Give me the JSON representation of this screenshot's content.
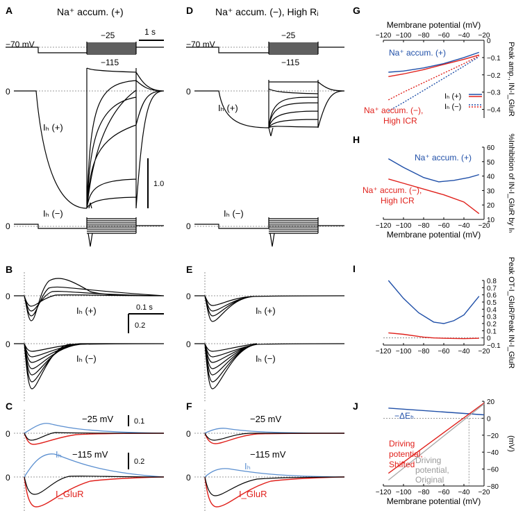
{
  "panels": {
    "A": {
      "letter": "A",
      "title": "Na⁺ accum. (+)"
    },
    "D": {
      "letter": "D",
      "title": "Na⁺ accum. (−), High Rᵢ"
    },
    "B": {
      "letter": "B"
    },
    "E": {
      "letter": "E"
    },
    "C": {
      "letter": "C"
    },
    "F": {
      "letter": "F"
    },
    "G": {
      "letter": "G"
    },
    "H": {
      "letter": "H"
    },
    "I": {
      "letter": "I"
    },
    "J": {
      "letter": "J"
    }
  },
  "protocol": {
    "hold": "−70 mV",
    "step_hi": "−25",
    "step_lo": "−115",
    "time_scale": "1 s"
  },
  "labels": {
    "ih_plus": "Iₕ (+)",
    "ih_minus": "Iₕ (−)",
    "zero": "0",
    "scale_A": "1.0",
    "scale_B_time": "0.1 s",
    "scale_B_amp": "0.2",
    "c_top_v": "−25 mV",
    "c_bot_v": "−115 mV",
    "c_scale_top": "0.1",
    "c_scale_bot": "0.2",
    "ih": "Iₕ",
    "iglur": "I_GluR"
  },
  "chart_data": [
    {
      "panel": "G",
      "type": "line",
      "title": "Membrane potential (mV)",
      "ylabel": "Peak amp., IN-I_GluR",
      "xlim": [
        -120,
        -20
      ],
      "ylim": [
        -0.45,
        0
      ],
      "xticks": [
        -120,
        -100,
        -80,
        -60,
        -40,
        -20
      ],
      "yticks": [
        0,
        -0.1,
        -0.2,
        -0.3,
        -0.4
      ],
      "yticklabels": [
        "0",
        "−0.1",
        "−0.2",
        "−0.3",
        "−0.4"
      ],
      "legend": [
        "Iₕ (+)",
        "Iₕ (−)"
      ],
      "annotations": [
        "Na⁺ accum. (+)",
        "Na⁺ accum. (−),",
        "High ICR"
      ],
      "series": [
        {
          "name": "Na accum (+) Ih(+)",
          "color": "#1f4fa8",
          "style": "solid",
          "x": [
            -115,
            -100,
            -80,
            -60,
            -40,
            -25
          ],
          "y": [
            -0.185,
            -0.178,
            -0.16,
            -0.135,
            -0.1,
            -0.07
          ]
        },
        {
          "name": "Na accum (+) Ih(-)",
          "color": "#1f4fa8",
          "style": "dotted",
          "x": [
            -115,
            -100,
            -80,
            -60,
            -40,
            -25
          ],
          "y": [
            -0.41,
            -0.36,
            -0.29,
            -0.22,
            -0.15,
            -0.095
          ]
        },
        {
          "name": "Na accum (-) Ih(+)",
          "color": "#e0201b",
          "style": "solid",
          "x": [
            -115,
            -100,
            -80,
            -60,
            -40,
            -25
          ],
          "y": [
            -0.21,
            -0.195,
            -0.17,
            -0.14,
            -0.11,
            -0.085
          ]
        },
        {
          "name": "Na accum (-) Ih(-)",
          "color": "#e0201b",
          "style": "dotted",
          "x": [
            -115,
            -100,
            -80,
            -60,
            -40,
            -25
          ],
          "y": [
            -0.345,
            -0.3,
            -0.245,
            -0.19,
            -0.135,
            -0.09
          ]
        }
      ]
    },
    {
      "panel": "H",
      "type": "line",
      "xlabel": "Membrane potential (mV)",
      "ylabel": "%Inhibition of IN-I_GluR by Iₕ",
      "xlim": [
        -120,
        -20
      ],
      "ylim": [
        10,
        60
      ],
      "xticks": [
        -120,
        -100,
        -80,
        -60,
        -40,
        -20
      ],
      "yticks": [
        10,
        20,
        30,
        40,
        50,
        60
      ],
      "annotations": [
        "Na⁺ accum. (+)",
        "Na⁺ accum. (−),",
        "High ICR"
      ],
      "series": [
        {
          "name": "Na accum (+)",
          "color": "#1f4fa8",
          "x": [
            -115,
            -100,
            -80,
            -65,
            -50,
            -35,
            -25
          ],
          "y": [
            52,
            46,
            39,
            36,
            37,
            39,
            41
          ]
        },
        {
          "name": "Na accum (-) High ICR",
          "color": "#e0201b",
          "x": [
            -115,
            -100,
            -80,
            -60,
            -40,
            -25
          ],
          "y": [
            38,
            35,
            31,
            27,
            22,
            14
          ]
        }
      ]
    },
    {
      "panel": "I",
      "type": "line",
      "ylabel": "Peak OT-I_GluR/Peak IN-I_GluR",
      "xlim": [
        -120,
        -20
      ],
      "ylim": [
        -0.1,
        0.8
      ],
      "xticks": [
        -120,
        -100,
        -80,
        -60,
        -40,
        -20
      ],
      "yticks": [
        -0.1,
        0,
        0.1,
        0.2,
        0.3,
        0.4,
        0.5,
        0.6,
        0.7,
        0.8
      ],
      "yticklabels": [
        "−0.1",
        "0",
        "0.1",
        "0.2",
        "0.3",
        "0.4",
        "0.5",
        "0.6",
        "0.7",
        "0.8"
      ],
      "series": [
        {
          "name": "Na accum (+)",
          "color": "#1f4fa8",
          "x": [
            -115,
            -100,
            -85,
            -70,
            -60,
            -50,
            -40,
            -25
          ],
          "y": [
            0.8,
            0.55,
            0.35,
            0.22,
            0.2,
            0.24,
            0.32,
            0.58
          ]
        },
        {
          "name": "Na accum (-)",
          "color": "#e0201b",
          "x": [
            -115,
            -100,
            -80,
            -70,
            -60,
            -40,
            -25
          ],
          "y": [
            0.07,
            0.05,
            0.01,
            0.0,
            -0.005,
            -0.01,
            -0.005
          ]
        }
      ]
    },
    {
      "panel": "J",
      "type": "line",
      "xlabel": "Membrane potential (mV)",
      "ylabel": "(mV)",
      "xlim": [
        -120,
        -20
      ],
      "ylim": [
        -80,
        20
      ],
      "xticks": [
        -120,
        -100,
        -80,
        -60,
        -40,
        -20
      ],
      "yticks": [
        -80,
        -60,
        -40,
        -20,
        0,
        20
      ],
      "yticklabels": [
        "−80",
        "−60",
        "−40",
        "−20",
        "0",
        "20"
      ],
      "annotations": [
        "−ΔEₕ",
        "Driving",
        "potential,",
        "Shifted",
        "Driving",
        "potential,",
        "Original"
      ],
      "series": [
        {
          "name": "−ΔEh",
          "color": "#1f4fa8",
          "x": [
            -115,
            -20
          ],
          "y": [
            12,
            4
          ]
        },
        {
          "name": "Driving potential, Shifted",
          "color": "#e0201b",
          "x": [
            -115,
            -20
          ],
          "y": [
            -65,
            18
          ]
        },
        {
          "name": "Driving potential, Original",
          "color": "#aaaaaa",
          "x": [
            -115,
            -20
          ],
          "y": [
            -73,
            17
          ]
        }
      ]
    }
  ]
}
